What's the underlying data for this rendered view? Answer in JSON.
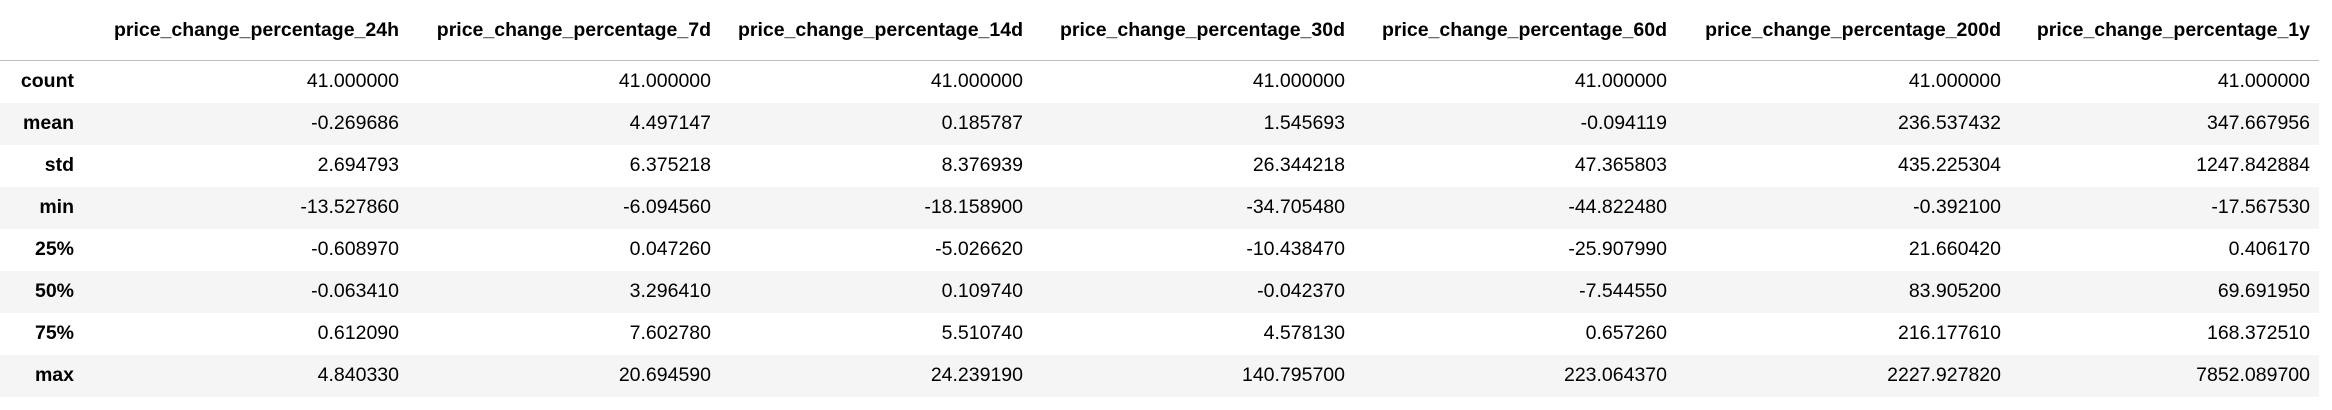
{
  "table": {
    "index_header": "",
    "columns": [
      "price_change_percentage_24h",
      "price_change_percentage_7d",
      "price_change_percentage_14d",
      "price_change_percentage_30d",
      "price_change_percentage_60d",
      "price_change_percentage_200d",
      "price_change_percentage_1y"
    ],
    "rows": [
      {
        "label": "count",
        "values": [
          "41.000000",
          "41.000000",
          "41.000000",
          "41.000000",
          "41.000000",
          "41.000000",
          "41.000000"
        ]
      },
      {
        "label": "mean",
        "values": [
          "-0.269686",
          "4.497147",
          "0.185787",
          "1.545693",
          "-0.094119",
          "236.537432",
          "347.667956"
        ]
      },
      {
        "label": "std",
        "values": [
          "2.694793",
          "6.375218",
          "8.376939",
          "26.344218",
          "47.365803",
          "435.225304",
          "1247.842884"
        ]
      },
      {
        "label": "min",
        "values": [
          "-13.527860",
          "-6.094560",
          "-18.158900",
          "-34.705480",
          "-44.822480",
          "-0.392100",
          "-17.567530"
        ]
      },
      {
        "label": "25%",
        "values": [
          "-0.608970",
          "0.047260",
          "-5.026620",
          "-10.438470",
          "-25.907990",
          "21.660420",
          "0.406170"
        ]
      },
      {
        "label": "50%",
        "values": [
          "-0.063410",
          "3.296410",
          "0.109740",
          "-0.042370",
          "-7.544550",
          "83.905200",
          "69.691950"
        ]
      },
      {
        "label": "75%",
        "values": [
          "0.612090",
          "7.602780",
          "5.510740",
          "4.578130",
          "0.657260",
          "216.177610",
          "168.372510"
        ]
      },
      {
        "label": "max",
        "values": [
          "4.840330",
          "20.694590",
          "24.239190",
          "140.795700",
          "223.064370",
          "2227.927820",
          "7852.089700"
        ]
      }
    ]
  }
}
